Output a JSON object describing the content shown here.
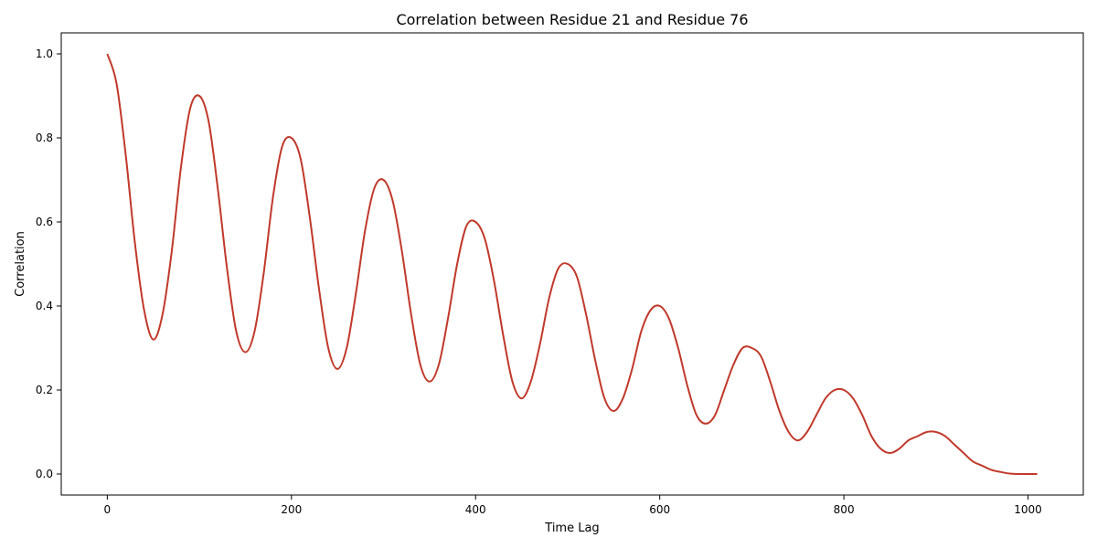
{
  "chart_data": {
    "type": "line",
    "title": "Correlation between Residue 21 and Residue 76",
    "xlabel": "Time Lag",
    "ylabel": "Correlation",
    "xlim": [
      -50,
      1060
    ],
    "ylim": [
      -0.05,
      1.05
    ],
    "xticks": [
      0,
      200,
      400,
      600,
      800,
      1000
    ],
    "xtick_labels": [
      "0",
      "200",
      "400",
      "600",
      "800",
      "1000"
    ],
    "yticks": [
      0.0,
      0.2,
      0.4,
      0.6,
      0.8,
      1.0
    ],
    "ytick_labels": [
      "0.0",
      "0.2",
      "0.4",
      "0.6",
      "0.8",
      "1.0"
    ],
    "grid": false,
    "legend": "none",
    "series": [
      {
        "color": "#c0392b",
        "x": [
          0,
          10,
          20,
          30,
          40,
          50,
          60,
          70,
          80,
          90,
          100,
          110,
          120,
          130,
          140,
          150,
          160,
          170,
          180,
          190,
          200,
          210,
          220,
          230,
          240,
          250,
          260,
          270,
          280,
          290,
          300,
          310,
          320,
          330,
          340,
          350,
          360,
          370,
          380,
          390,
          400,
          410,
          420,
          430,
          440,
          450,
          460,
          470,
          480,
          490,
          500,
          510,
          520,
          530,
          540,
          550,
          560,
          570,
          580,
          590,
          600,
          610,
          620,
          630,
          640,
          650,
          660,
          670,
          680,
          690,
          700,
          710,
          720,
          730,
          740,
          750,
          760,
          770,
          780,
          790,
          800,
          810,
          820,
          830,
          840,
          850,
          860,
          870,
          880,
          890,
          900,
          910,
          920,
          930,
          940,
          950,
          960,
          970,
          980,
          990,
          1000,
          1010
        ],
        "y": [
          1.0,
          0.93,
          0.76,
          0.55,
          0.39,
          0.32,
          0.38,
          0.53,
          0.73,
          0.87,
          0.9,
          0.84,
          0.68,
          0.49,
          0.34,
          0.29,
          0.34,
          0.48,
          0.66,
          0.78,
          0.8,
          0.75,
          0.61,
          0.44,
          0.3,
          0.25,
          0.3,
          0.43,
          0.58,
          0.68,
          0.7,
          0.65,
          0.53,
          0.38,
          0.26,
          0.22,
          0.26,
          0.37,
          0.5,
          0.59,
          0.6,
          0.56,
          0.46,
          0.33,
          0.22,
          0.18,
          0.22,
          0.31,
          0.42,
          0.49,
          0.5,
          0.47,
          0.38,
          0.27,
          0.18,
          0.15,
          0.18,
          0.25,
          0.34,
          0.39,
          0.4,
          0.37,
          0.3,
          0.21,
          0.14,
          0.12,
          0.14,
          0.2,
          0.26,
          0.3,
          0.3,
          0.28,
          0.22,
          0.15,
          0.1,
          0.08,
          0.1,
          0.14,
          0.18,
          0.2,
          0.2,
          0.18,
          0.14,
          0.09,
          0.06,
          0.05,
          0.06,
          0.08,
          0.09,
          0.1,
          0.1,
          0.09,
          0.07,
          0.05,
          0.03,
          0.02,
          0.01,
          0.005,
          0.001,
          0.0,
          0.0,
          0.0
        ]
      }
    ]
  }
}
